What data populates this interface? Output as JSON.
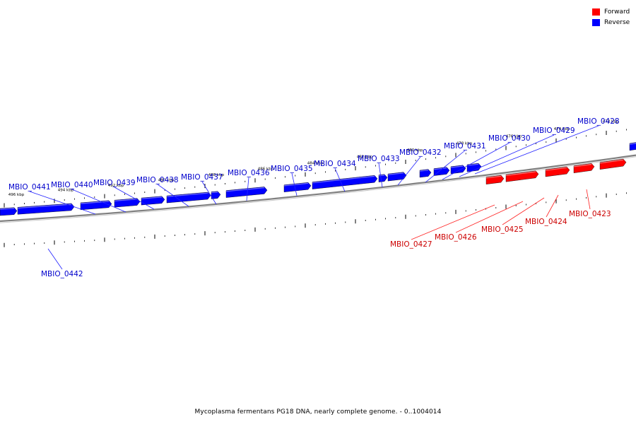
{
  "legend": {
    "forward": {
      "label": "Forward",
      "color": "#ff0000"
    },
    "reverse": {
      "label": "Reverse",
      "color": "#0000ff"
    }
  },
  "caption": "Mycoplasma fermentans PG18 DNA, nearly complete genome. - 0..1004014",
  "backbone_color": "#808080",
  "label_colors": {
    "forward": "#cc0000",
    "reverse": "#0000cc"
  },
  "tick_labels": [
    "496 kbp",
    "494 kbp",
    "492 kbp",
    "490 kbp",
    "488 kbp",
    "486 kbp",
    "484 kbp",
    "482 kbp",
    "480 kbp",
    "478 kbp",
    "476 kbp",
    "474 kbp",
    "472 kbp"
  ],
  "genes": [
    {
      "name": "MBIO_0423",
      "strand": "forward"
    },
    {
      "name": "MBIO_0424",
      "strand": "forward"
    },
    {
      "name": "MBIO_0425",
      "strand": "forward"
    },
    {
      "name": "MBIO_0426",
      "strand": "forward"
    },
    {
      "name": "MBIO_0427",
      "strand": "forward"
    },
    {
      "name": "MBIO_0428",
      "strand": "reverse"
    },
    {
      "name": "MBIO_0429",
      "strand": "reverse"
    },
    {
      "name": "MBIO_0430",
      "strand": "reverse"
    },
    {
      "name": "MBIO_0431",
      "strand": "reverse"
    },
    {
      "name": "MBIO_0432",
      "strand": "reverse"
    },
    {
      "name": "MBIO_0433",
      "strand": "reverse"
    },
    {
      "name": "MBIO_0434",
      "strand": "reverse"
    },
    {
      "name": "MBIO_0435",
      "strand": "reverse"
    },
    {
      "name": "MBIO_0436",
      "strand": "reverse"
    },
    {
      "name": "MBIO_0437",
      "strand": "reverse"
    },
    {
      "name": "MBIO_0438",
      "strand": "reverse"
    },
    {
      "name": "MBIO_0439",
      "strand": "reverse"
    },
    {
      "name": "MBIO_0440",
      "strand": "reverse"
    },
    {
      "name": "MBIO_0441",
      "strand": "reverse"
    },
    {
      "name": "MBIO_0442",
      "strand": "reverse"
    }
  ]
}
